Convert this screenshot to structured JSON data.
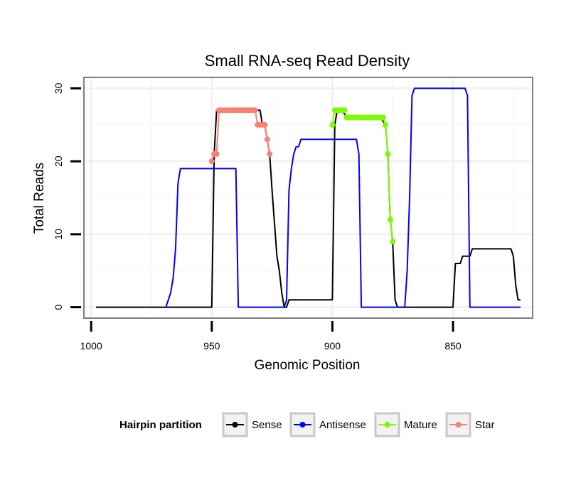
{
  "chart_data": {
    "type": "line",
    "title": "Small RNA-seq Read Density",
    "xlabel": "Genomic Position",
    "ylabel": "Total Reads",
    "xlim": [
      1003,
      817
    ],
    "x_reversed": true,
    "ylim": [
      -1.5,
      31.5
    ],
    "xticks": [
      1000,
      950,
      900,
      850
    ],
    "xtick_labels": [
      "1000",
      "950",
      "900",
      "850"
    ],
    "yticks": [
      0,
      10,
      20,
      30
    ],
    "ytick_labels": [
      "0",
      "10",
      "20",
      "30"
    ],
    "grid": true,
    "legend": {
      "title": "Hairpin partition",
      "position": "bottom",
      "entries": [
        {
          "name": "Sense",
          "color": "#000000"
        },
        {
          "name": "Antisense",
          "color": "#0000ff"
        },
        {
          "name": "Mature",
          "color": "#7cfc00"
        },
        {
          "name": "Star",
          "color": "#fa8072"
        }
      ]
    },
    "series": [
      {
        "name": "Sense",
        "color": "#000000",
        "points": [
          [
            998,
            0
          ],
          [
            950,
            0
          ],
          [
            949,
            21
          ],
          [
            948,
            27
          ],
          [
            946,
            27
          ],
          [
            930,
            27
          ],
          [
            929,
            25
          ],
          [
            928,
            25
          ],
          [
            927,
            23
          ],
          [
            926,
            21
          ],
          [
            925,
            16
          ],
          [
            923,
            7
          ],
          [
            922,
            5
          ],
          [
            921,
            2
          ],
          [
            920,
            0
          ],
          [
            919,
            0
          ],
          [
            918,
            1
          ],
          [
            905,
            1
          ],
          [
            900,
            1
          ],
          [
            899,
            25
          ],
          [
            898,
            27
          ],
          [
            896,
            27
          ],
          [
            894,
            26
          ],
          [
            880,
            26
          ],
          [
            878,
            25
          ],
          [
            877,
            21
          ],
          [
            876,
            12
          ],
          [
            875,
            9
          ],
          [
            874,
            1
          ],
          [
            873,
            0
          ],
          [
            850,
            0
          ],
          [
            849,
            6
          ],
          [
            847,
            6
          ],
          [
            846,
            7
          ],
          [
            843,
            7
          ],
          [
            842,
            8
          ],
          [
            826,
            8
          ],
          [
            825,
            7
          ],
          [
            824,
            3
          ],
          [
            823,
            1
          ],
          [
            822,
            1
          ]
        ]
      },
      {
        "name": "Antisense",
        "color": "#0000ff",
        "points": [
          [
            969,
            0
          ],
          [
            967,
            2
          ],
          [
            966,
            4
          ],
          [
            965,
            8
          ],
          [
            964,
            17
          ],
          [
            963,
            19
          ],
          [
            940,
            19
          ],
          [
            939,
            0
          ],
          [
            920,
            0
          ],
          [
            919,
            1
          ],
          [
            918,
            16
          ],
          [
            917,
            19
          ],
          [
            916,
            21
          ],
          [
            915,
            22
          ],
          [
            914,
            22
          ],
          [
            913,
            23
          ],
          [
            890,
            23
          ],
          [
            889,
            21
          ],
          [
            888,
            0
          ],
          [
            870,
            0
          ],
          [
            869,
            5
          ],
          [
            868,
            15
          ],
          [
            867,
            29
          ],
          [
            866,
            30
          ],
          [
            845,
            30
          ],
          [
            844,
            29
          ],
          [
            843,
            0
          ],
          [
            822,
            0
          ]
        ]
      },
      {
        "name": "Mature",
        "color": "#7cfc00",
        "points": [
          [
            900,
            25
          ],
          [
            899,
            27
          ],
          [
            898,
            27
          ],
          [
            897,
            27
          ],
          [
            896,
            27
          ],
          [
            895,
            27
          ],
          [
            894,
            26
          ],
          [
            893,
            26
          ],
          [
            892,
            26
          ],
          [
            891,
            26
          ],
          [
            890,
            26
          ],
          [
            889,
            26
          ],
          [
            888,
            26
          ],
          [
            887,
            26
          ],
          [
            886,
            26
          ],
          [
            885,
            26
          ],
          [
            884,
            26
          ],
          [
            883,
            26
          ],
          [
            882,
            26
          ],
          [
            881,
            26
          ],
          [
            880,
            26
          ],
          [
            879,
            26
          ],
          [
            878,
            25
          ],
          [
            877,
            21
          ],
          [
            876,
            12
          ],
          [
            875,
            9
          ]
        ]
      },
      {
        "name": "Star",
        "color": "#fa8072",
        "points": [
          [
            950,
            20
          ],
          [
            949,
            21
          ],
          [
            948,
            21
          ],
          [
            947,
            27
          ],
          [
            946,
            27
          ],
          [
            945,
            27
          ],
          [
            944,
            27
          ],
          [
            943,
            27
          ],
          [
            942,
            27
          ],
          [
            941,
            27
          ],
          [
            940,
            27
          ],
          [
            939,
            27
          ],
          [
            938,
            27
          ],
          [
            937,
            27
          ],
          [
            936,
            27
          ],
          [
            935,
            27
          ],
          [
            934,
            27
          ],
          [
            933,
            27
          ],
          [
            932,
            27
          ],
          [
            931,
            25
          ],
          [
            930,
            25
          ],
          [
            929,
            25
          ],
          [
            928,
            25
          ],
          [
            927,
            23
          ],
          [
            926,
            21
          ]
        ]
      }
    ]
  }
}
